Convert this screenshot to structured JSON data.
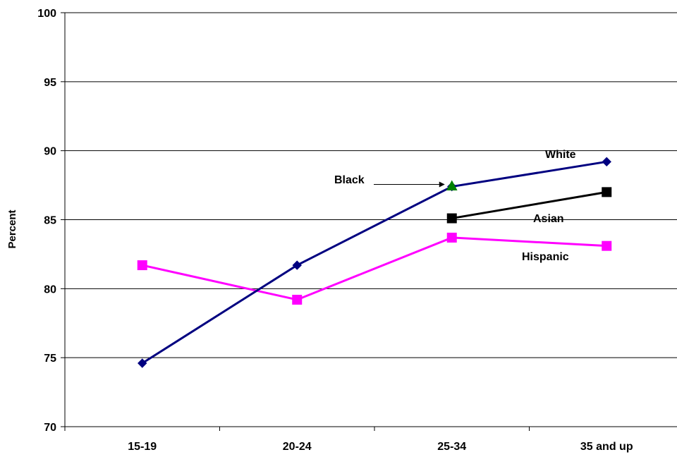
{
  "chart_data": {
    "type": "line",
    "title": "",
    "xlabel": "",
    "ylabel": "Percent",
    "ylim": [
      70,
      100
    ],
    "yticks": [
      70,
      75,
      80,
      85,
      90,
      95,
      100
    ],
    "grid": "horizontal",
    "legend": "none",
    "categories": [
      "15-19",
      "20-24",
      "25-34",
      "35 and up"
    ],
    "series": [
      {
        "name": "White",
        "color": "#000080",
        "marker": "diamond",
        "values": [
          74.6,
          81.7,
          87.4,
          89.2
        ]
      },
      {
        "name": "Asian",
        "color": "#000000",
        "marker": "square",
        "values": [
          null,
          null,
          85.1,
          87.0
        ]
      },
      {
        "name": "Hispanic",
        "color": "#ff00ff",
        "marker": "square",
        "values": [
          81.7,
          79.2,
          83.7,
          83.1
        ]
      },
      {
        "name": "Black",
        "color": "#008000",
        "marker": "triangle",
        "values": [
          null,
          null,
          87.4,
          null
        ]
      }
    ],
    "annotations": [
      {
        "text": "White",
        "series": "White"
      },
      {
        "text": "Asian",
        "series": "Asian"
      },
      {
        "text": "Hispanic",
        "series": "Hispanic"
      },
      {
        "text": "Black",
        "series": "Black",
        "arrow": true
      }
    ]
  }
}
